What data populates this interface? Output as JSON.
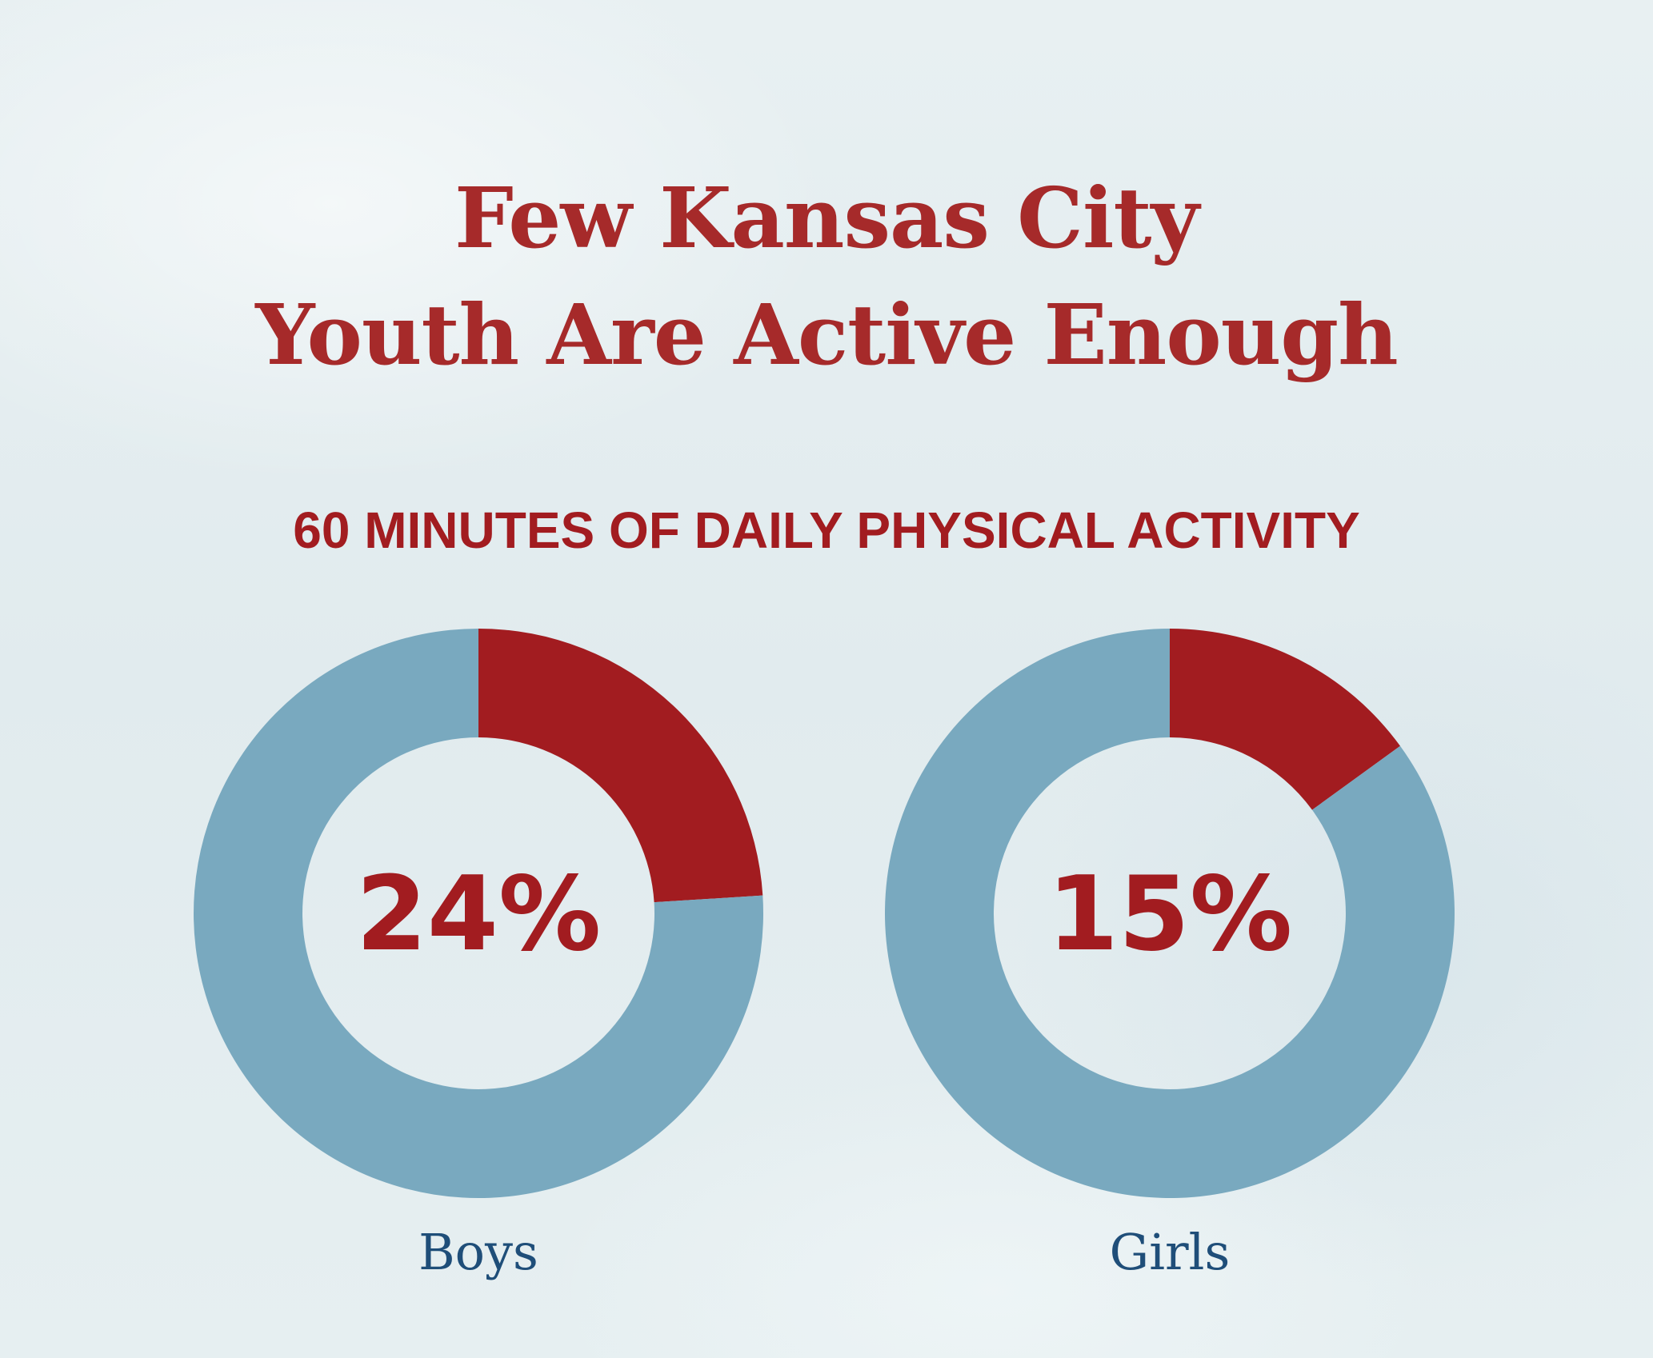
{
  "title": {
    "line1": "Few Kansas City",
    "line2": "Youth Are Active Enough"
  },
  "subtitle": "60 MINUTES OF DAILY PHYSICAL ACTIVITY",
  "colors": {
    "active": "#a21c20",
    "inactive": "#79a9bf",
    "label_text": "#1f4e79",
    "title_text": "#a62a2a"
  },
  "chart_data": [
    {
      "type": "pie",
      "style": "donut",
      "category": "Boys",
      "value": 24,
      "value_label": "24%",
      "slices": [
        {
          "value": 24,
          "color": "#a21c20"
        },
        {
          "value": 76,
          "color": "#79a9bf"
        }
      ]
    },
    {
      "type": "pie",
      "style": "donut",
      "category": "Girls",
      "value": 15,
      "value_label": "15%",
      "slices": [
        {
          "value": 15,
          "color": "#a21c20"
        },
        {
          "value": 85,
          "color": "#79a9bf"
        }
      ]
    }
  ]
}
